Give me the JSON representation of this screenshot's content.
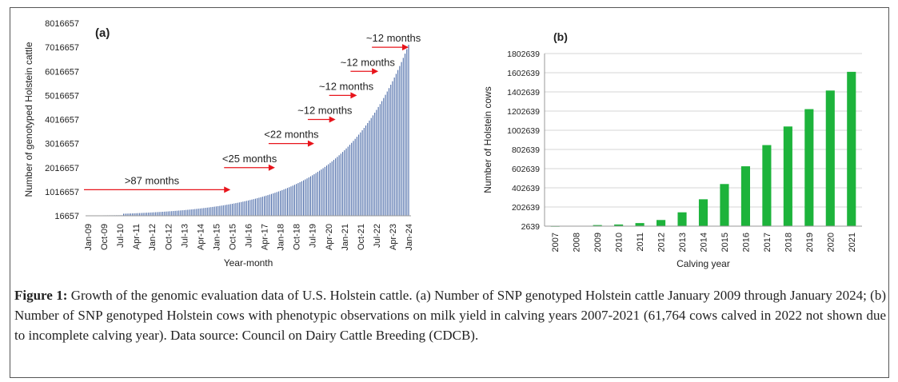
{
  "chart_data": [
    {
      "type": "bar",
      "panel_label": "(a)",
      "title": "",
      "xlabel": "Year-month",
      "ylabel": "Number of genotyped Holstein cattle",
      "yticks": [
        16657,
        1016657,
        2016657,
        3016657,
        4016657,
        5016657,
        6016657,
        7016657,
        8016657
      ],
      "ylim": [
        16657,
        8016657
      ],
      "tick_labels": [
        "Jan-09",
        "Oct-09",
        "Jul-10",
        "Apr-11",
        "Jan-12",
        "Oct-12",
        "Jul-13",
        "Apr-14",
        "Jan-15",
        "Oct-15",
        "Jul-16",
        "Apr-17",
        "Jan-18",
        "Oct-18",
        "Jul-19",
        "Apr-20",
        "Jan-21",
        "Oct-21",
        "Jul-22",
        "Apr-23",
        "Jan-24"
      ],
      "series_color": "#4a6aa8",
      "growth_shape": "monthly counts from ~16657 (Jan-09) rising exponentially to ~7120000 (Jan-24)",
      "start_value": 16657,
      "end_value": 7120000,
      "n_months": 181,
      "annotations": [
        {
          "text": ">87 months",
          "from_month": 0,
          "to_month": 80,
          "y": 1100000
        },
        {
          "text": "<25 months",
          "from_month": 80,
          "to_month": 105,
          "y": 2016657
        },
        {
          "text": "<22 months",
          "from_month": 105,
          "to_month": 127,
          "y": 3016657
        },
        {
          "text": "~12 months",
          "from_month": 127,
          "to_month": 139,
          "y": 4016657
        },
        {
          "text": "~12 months",
          "from_month": 139,
          "to_month": 151,
          "y": 5016657
        },
        {
          "text": "~12 months",
          "from_month": 151,
          "to_month": 163,
          "y": 6016657
        },
        {
          "text": "~12 months",
          "from_month": 163,
          "to_month": 180,
          "y": 7016657
        }
      ],
      "annotation_color": "#e8141b"
    },
    {
      "type": "bar",
      "panel_label": "(b)",
      "title": "",
      "xlabel": "Calving year",
      "ylabel": "Number of Holstein cows",
      "yticks": [
        2639,
        202639,
        402639,
        602639,
        802639,
        1002639,
        1202639,
        1402639,
        1602639,
        1802639
      ],
      "ylim": [
        2639,
        1802639
      ],
      "categories": [
        "2007",
        "2008",
        "2009",
        "2010",
        "2011",
        "2012",
        "2013",
        "2014",
        "2015",
        "2016",
        "2017",
        "2018",
        "2019",
        "2020",
        "2021"
      ],
      "values": [
        3500,
        6000,
        14000,
        20000,
        35000,
        67000,
        147000,
        283000,
        442000,
        627000,
        848000,
        1042000,
        1223000,
        1417000,
        1612000
      ],
      "series_color": "#1db33b",
      "grid": true
    }
  ],
  "caption": {
    "label": "Figure 1:",
    "text": " Growth of the genomic evaluation data of U.S. Holstein cattle. (a) Number of SNP genotyped Holstein cattle January 2009 through January 2024; (b) Number of SNP genotyped Holstein cows with phenotypic observations on milk yield in calving years 2007-2021 (61,764 cows calved in 2022 not shown due to incomplete calving year). Data source: Council on Dairy Cattle Breeding (CDCB)."
  }
}
